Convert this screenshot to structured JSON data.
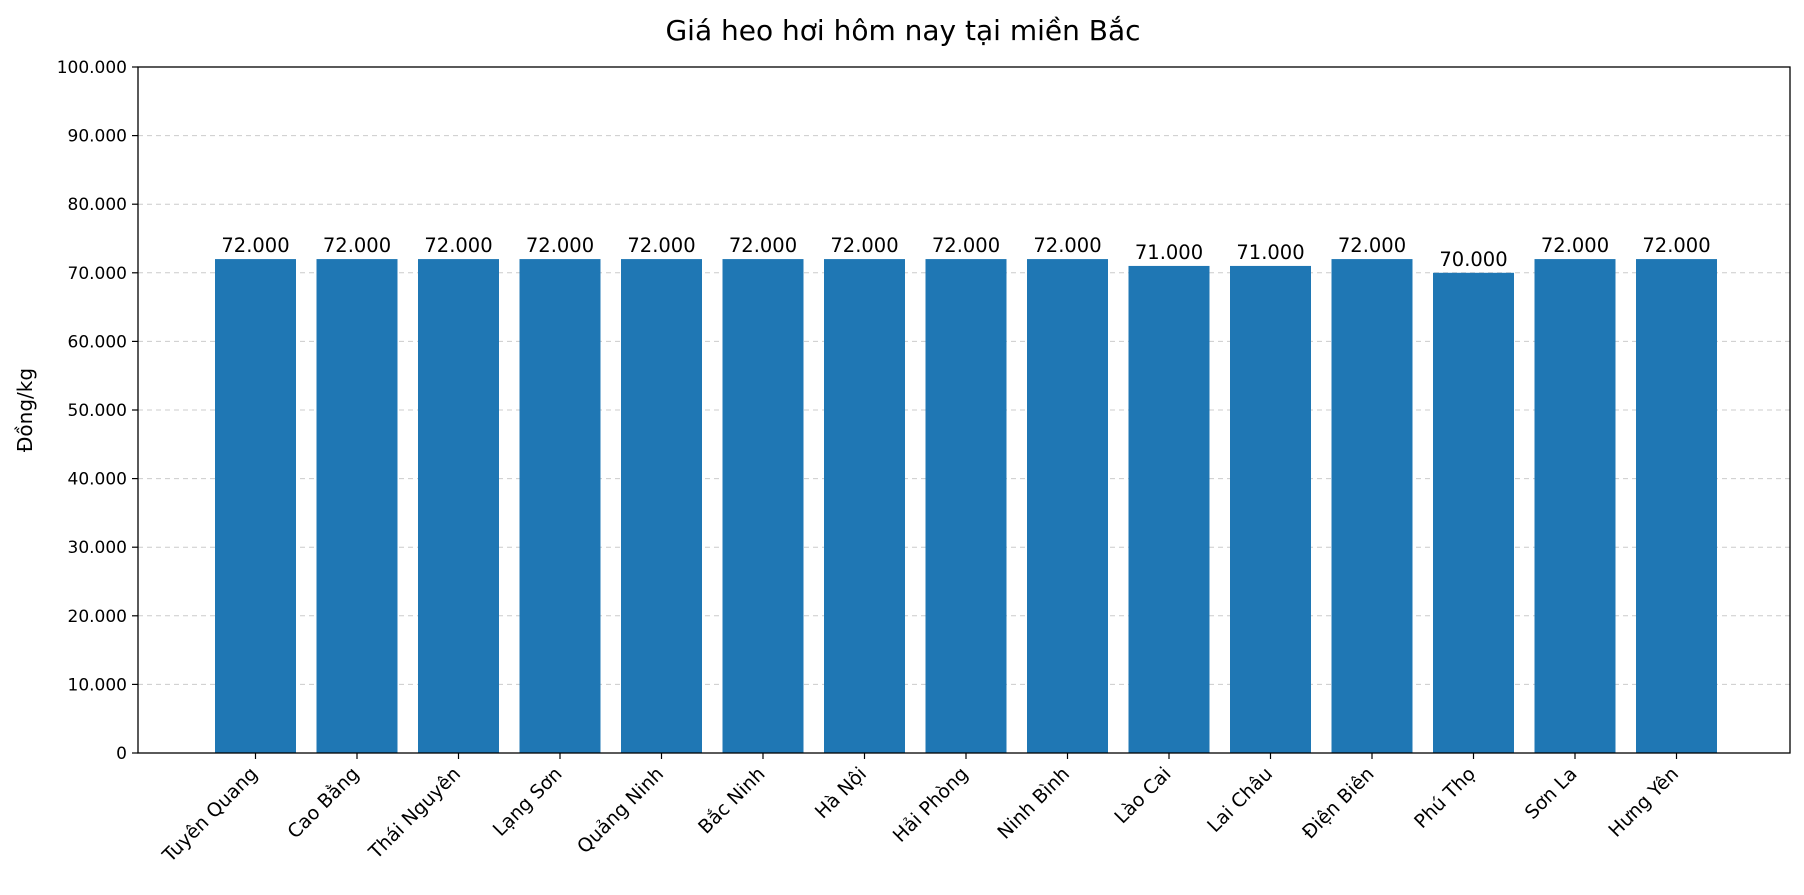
{
  "chart_data": {
    "type": "bar",
    "title": "Giá heo hơi hôm nay tại miền Bắc",
    "xlabel": "",
    "ylabel": "Đồng/kg",
    "ylim": [
      0,
      100000
    ],
    "yticks": [
      0,
      10000,
      20000,
      30000,
      40000,
      50000,
      60000,
      70000,
      80000,
      90000,
      100000
    ],
    "ytick_labels": [
      "0",
      "10.000",
      "20.000",
      "30.000",
      "40.000",
      "50.000",
      "60.000",
      "70.000",
      "80.000",
      "90.000",
      "100.000"
    ],
    "grid": "y-dashed",
    "bar_color": "#1f77b4",
    "categories": [
      "Tuyên Quang",
      "Cao Bằng",
      "Thái Nguyên",
      "Lạng Sơn",
      "Quảng Ninh",
      "Bắc Ninh",
      "Hà Nội",
      "Hải Phòng",
      "Ninh Bình",
      "Lào Cai",
      "Lai Châu",
      "Điện Biên",
      "Phú Thọ",
      "Sơn La",
      "Hưng Yên"
    ],
    "values": [
      72000,
      72000,
      72000,
      72000,
      72000,
      72000,
      72000,
      72000,
      72000,
      71000,
      71000,
      72000,
      70000,
      72000,
      72000
    ],
    "value_labels": [
      "72.000",
      "72.000",
      "72.000",
      "72.000",
      "72.000",
      "72.000",
      "72.000",
      "72.000",
      "72.000",
      "71.000",
      "71.000",
      "72.000",
      "70.000",
      "72.000",
      "72.000"
    ]
  }
}
